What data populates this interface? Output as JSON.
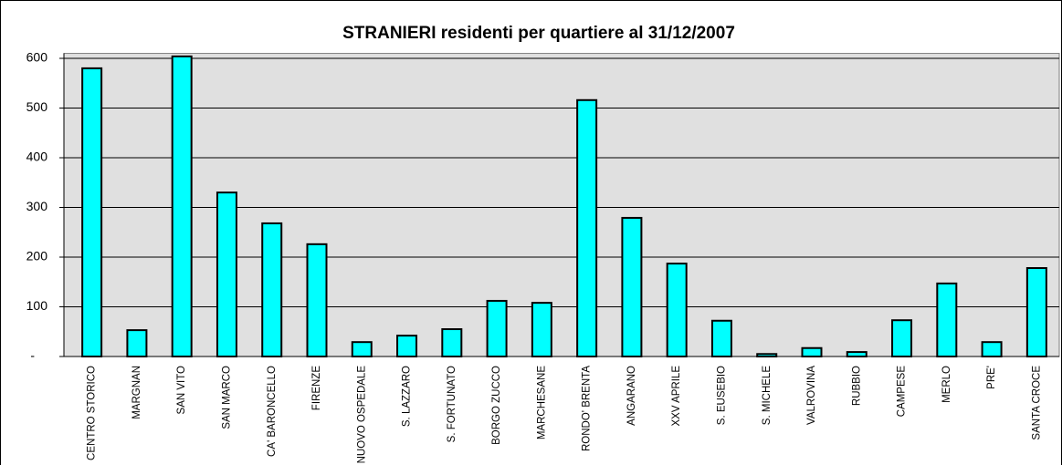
{
  "chart_data": {
    "type": "bar",
    "title": "STRANIERI residenti per quartiere al 31/12/2007",
    "categories": [
      "CENTRO STORICO",
      "MARGNAN",
      "SAN VITO",
      "SAN MARCO",
      "CA' BARONCELLO",
      "FIRENZE",
      "NUOVO OSPEDALE",
      "S. LAZZARO",
      "S. FORTUNATO",
      "BORGO ZUCCO",
      "MARCHESANE",
      "RONDO' BRENTA",
      "ANGARANO",
      "XXV APRILE",
      "S. EUSEBIO",
      "S. MICHELE",
      "VALROVINA",
      "RUBBIO",
      "CAMPESE",
      "MERLO",
      "PRE'",
      "SANTA CROCE"
    ],
    "values": [
      580,
      53,
      604,
      330,
      268,
      226,
      29,
      42,
      55,
      112,
      108,
      516,
      279,
      187,
      72,
      5,
      17,
      9,
      73,
      147,
      29,
      178
    ],
    "color": "#00ffff",
    "ylim": [
      0,
      610
    ],
    "yticks": [
      {
        "value": 0,
        "label": "-"
      },
      100,
      200,
      300,
      400,
      500,
      600
    ],
    "grid": true
  }
}
